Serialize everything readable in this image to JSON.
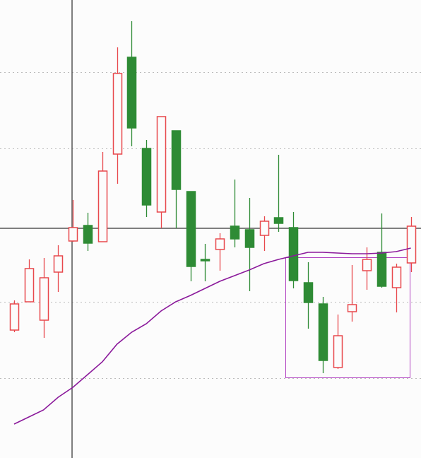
{
  "chart_data": {
    "type": "candlestick",
    "ylim": [
      0,
      648
    ],
    "gridlines": [
      113,
      221,
      438,
      546
    ],
    "grid": true,
    "up_color": "#e8484c",
    "down_color": "#2e8b35",
    "ohlc": [
      {
        "open": 181,
        "high": 223,
        "low": 178,
        "close": 218
      },
      {
        "open": 221,
        "high": 281,
        "low": 221,
        "close": 268
      },
      {
        "open": 195,
        "high": 283,
        "low": 170,
        "close": 255
      },
      {
        "open": 263,
        "high": 301,
        "low": 235,
        "close": 286
      },
      {
        "open": 307,
        "high": 365,
        "low": 306,
        "close": 326
      },
      {
        "open": 329,
        "high": 347,
        "low": 293,
        "close": 304
      },
      {
        "open": 306,
        "high": 433,
        "low": 306,
        "close": 406
      },
      {
        "open": 430,
        "high": 581,
        "low": 388,
        "close": 544
      },
      {
        "open": 567,
        "high": 618,
        "low": 441,
        "close": 467
      },
      {
        "open": 438,
        "high": 450,
        "low": 341,
        "close": 358
      },
      {
        "open": 348,
        "high": 483,
        "low": 325,
        "close": 483
      },
      {
        "open": 463,
        "high": 463,
        "low": 325,
        "close": 380
      },
      {
        "open": 377,
        "high": 377,
        "low": 250,
        "close": 271
      },
      {
        "open": 281,
        "high": 303,
        "low": 250,
        "close": 279
      },
      {
        "open": 295,
        "high": 318,
        "low": 265,
        "close": 310
      },
      {
        "open": 328,
        "high": 394,
        "low": 298,
        "close": 310
      },
      {
        "open": 323,
        "high": 368,
        "low": 236,
        "close": 298
      },
      {
        "open": 315,
        "high": 342,
        "low": 293,
        "close": 335
      },
      {
        "open": 340,
        "high": 429,
        "low": 320,
        "close": 332
      },
      {
        "open": 326,
        "high": 348,
        "low": 240,
        "close": 251
      },
      {
        "open": 248,
        "high": 277,
        "low": 183,
        "close": 220
      },
      {
        "open": 218,
        "high": 228,
        "low": 120,
        "close": 138
      },
      {
        "open": 128,
        "high": 203,
        "low": 126,
        "close": 173
      },
      {
        "open": 207,
        "high": 273,
        "low": 193,
        "close": 217
      },
      {
        "open": 265,
        "high": 298,
        "low": 238,
        "close": 281
      },
      {
        "open": 291,
        "high": 346,
        "low": 241,
        "close": 243
      },
      {
        "open": 241,
        "high": 275,
        "low": 206,
        "close": 270
      },
      {
        "open": 276,
        "high": 341,
        "low": 263,
        "close": 328
      }
    ],
    "moving_average": {
      "color": "#8b1a9b",
      "values": [
        48,
        58,
        68,
        86,
        100,
        118,
        136,
        161,
        178,
        190,
        208,
        221,
        230,
        240,
        250,
        258,
        266,
        275,
        281,
        286,
        291,
        291,
        290,
        289,
        289,
        290,
        292,
        297
      ]
    }
  }
}
